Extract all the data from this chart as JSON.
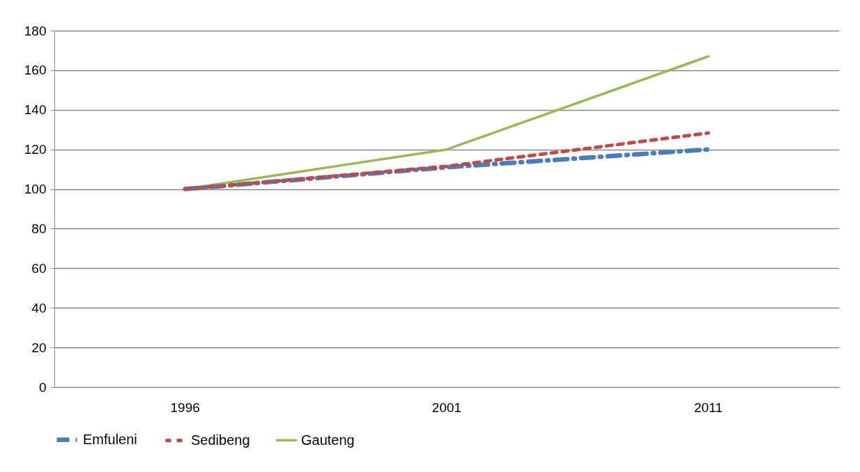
{
  "chart_data": {
    "type": "line",
    "categories": [
      "1996",
      "2001",
      "2011"
    ],
    "series": [
      {
        "name": "Emfuleni",
        "color": "#4a7ebb",
        "values": [
          100,
          111,
          120
        ],
        "line_style": "dashed"
      },
      {
        "name": "Sedibeng",
        "color": "#be4b48",
        "values": [
          100,
          111.5,
          128.3
        ],
        "line_style": "dotted"
      },
      {
        "name": "Gauteng",
        "color": "#98b954",
        "values": [
          100,
          120,
          167
        ],
        "line_style": "solid"
      }
    ],
    "ylim": [
      0,
      180
    ],
    "yticks": [
      0,
      20,
      40,
      60,
      80,
      100,
      120,
      140,
      160,
      180
    ],
    "grid": "y",
    "legend": "bottom"
  }
}
